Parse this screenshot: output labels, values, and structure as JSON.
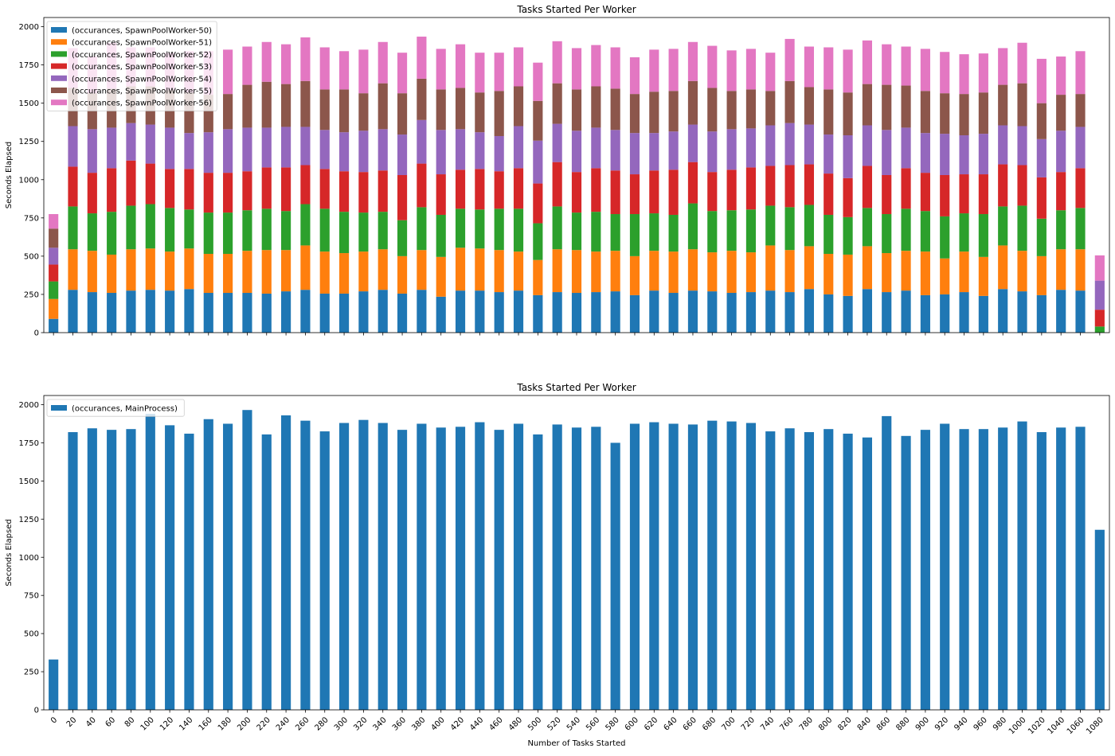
{
  "chart_data": [
    {
      "type": "bar",
      "stacked": true,
      "title": "Tasks Started Per Worker",
      "xlabel": "",
      "ylabel": "Seconds Elapsed",
      "ylim": [
        0,
        2060
      ],
      "yticks": [
        0,
        250,
        500,
        750,
        1000,
        1250,
        1500,
        1750,
        2000
      ],
      "x_ticklabels_visible": false,
      "legend_position": "top-left",
      "categories": [
        "0",
        "20",
        "40",
        "60",
        "80",
        "100",
        "120",
        "140",
        "160",
        "180",
        "200",
        "220",
        "240",
        "260",
        "280",
        "300",
        "320",
        "340",
        "360",
        "380",
        "400",
        "420",
        "440",
        "460",
        "480",
        "500",
        "520",
        "540",
        "560",
        "580",
        "600",
        "620",
        "640",
        "660",
        "680",
        "700",
        "720",
        "740",
        "760",
        "780",
        "800",
        "820",
        "840",
        "860",
        "880",
        "900",
        "920",
        "940",
        "960",
        "980",
        "1000",
        "1020",
        "1040",
        "1060",
        "1080"
      ],
      "series": [
        {
          "name": "(occurances, SpawnPoolWorker-50)",
          "color": "#1f77b4",
          "values": [
            90,
            280,
            265,
            260,
            275,
            280,
            275,
            285,
            260,
            260,
            260,
            255,
            270,
            280,
            255,
            255,
            270,
            280,
            255,
            280,
            235,
            275,
            275,
            265,
            275,
            245,
            265,
            260,
            265,
            270,
            245,
            275,
            260,
            275,
            270,
            260,
            265,
            275,
            265,
            285,
            250,
            240,
            285,
            265,
            275,
            245,
            250,
            265,
            240,
            285,
            270,
            245,
            280,
            275,
            0
          ]
        },
        {
          "name": "(occurances, SpawnPoolWorker-51)",
          "color": "#ff7f0e",
          "values": [
            130,
            265,
            270,
            250,
            270,
            270,
            255,
            265,
            255,
            255,
            275,
            285,
            270,
            290,
            275,
            265,
            260,
            265,
            245,
            260,
            260,
            280,
            275,
            275,
            255,
            230,
            280,
            280,
            265,
            265,
            255,
            260,
            270,
            270,
            255,
            275,
            260,
            295,
            275,
            280,
            265,
            270,
            280,
            255,
            260,
            285,
            235,
            265,
            255,
            285,
            265,
            255,
            265,
            270,
            0
          ]
        },
        {
          "name": "(occurances, SpawnPoolWorker-52)",
          "color": "#2ca02c",
          "values": [
            115,
            280,
            245,
            280,
            285,
            290,
            285,
            255,
            270,
            270,
            265,
            270,
            255,
            270,
            280,
            270,
            255,
            245,
            235,
            280,
            275,
            255,
            255,
            270,
            280,
            240,
            280,
            245,
            260,
            240,
            275,
            245,
            240,
            300,
            270,
            265,
            280,
            260,
            280,
            270,
            255,
            245,
            250,
            255,
            275,
            265,
            275,
            250,
            280,
            255,
            295,
            245,
            255,
            270,
            40
          ]
        },
        {
          "name": "(occurances, SpawnPoolWorker-53)",
          "color": "#d62728",
          "values": [
            110,
            260,
            265,
            285,
            295,
            265,
            255,
            265,
            260,
            260,
            255,
            270,
            285,
            255,
            260,
            265,
            265,
            270,
            295,
            285,
            265,
            255,
            265,
            245,
            265,
            260,
            290,
            265,
            285,
            285,
            260,
            280,
            295,
            270,
            255,
            265,
            275,
            260,
            275,
            265,
            270,
            255,
            275,
            255,
            265,
            250,
            270,
            255,
            260,
            275,
            265,
            270,
            250,
            260,
            110
          ]
        },
        {
          "name": "(occurances, SpawnPoolWorker-54)",
          "color": "#9467bd",
          "values": [
            110,
            265,
            285,
            265,
            245,
            255,
            270,
            235,
            265,
            285,
            285,
            260,
            265,
            250,
            255,
            255,
            270,
            270,
            265,
            285,
            290,
            265,
            240,
            230,
            275,
            280,
            250,
            270,
            265,
            265,
            270,
            245,
            250,
            245,
            265,
            265,
            255,
            265,
            275,
            260,
            255,
            280,
            265,
            295,
            265,
            260,
            270,
            255,
            265,
            255,
            255,
            250,
            270,
            270,
            190
          ]
        },
        {
          "name": "(occurances, SpawnPoolWorker-55)",
          "color": "#8c564b",
          "values": [
            125,
            250,
            235,
            255,
            240,
            250,
            245,
            265,
            245,
            230,
            280,
            300,
            280,
            300,
            265,
            280,
            245,
            300,
            270,
            270,
            265,
            270,
            260,
            295,
            260,
            260,
            265,
            270,
            270,
            270,
            255,
            270,
            265,
            285,
            285,
            250,
            255,
            225,
            275,
            245,
            295,
            280,
            270,
            295,
            275,
            275,
            265,
            270,
            270,
            265,
            280,
            235,
            235,
            215,
            0
          ]
        },
        {
          "name": "(occurances, SpawnPoolWorker-56)",
          "color": "#e377c2",
          "values": [
            95,
            260,
            240,
            300,
            255,
            255,
            245,
            270,
            285,
            290,
            250,
            260,
            260,
            285,
            275,
            250,
            285,
            270,
            265,
            275,
            265,
            285,
            260,
            250,
            255,
            250,
            275,
            270,
            270,
            270,
            240,
            275,
            275,
            255,
            275,
            265,
            265,
            250,
            275,
            265,
            275,
            280,
            285,
            265,
            255,
            275,
            270,
            260,
            255,
            240,
            265,
            290,
            250,
            280,
            165
          ]
        }
      ]
    },
    {
      "type": "bar",
      "title": "Tasks Started Per Worker",
      "xlabel": "Number of Tasks Started",
      "ylabel": "Seconds Elapsed",
      "ylim": [
        0,
        2060
      ],
      "yticks": [
        0,
        250,
        500,
        750,
        1000,
        1250,
        1500,
        1750,
        2000
      ],
      "x_ticklabels_visible": true,
      "legend_position": "top-left",
      "categories": [
        "0",
        "20",
        "40",
        "60",
        "80",
        "100",
        "120",
        "140",
        "160",
        "180",
        "200",
        "220",
        "240",
        "260",
        "280",
        "300",
        "320",
        "340",
        "360",
        "380",
        "400",
        "420",
        "440",
        "460",
        "480",
        "500",
        "520",
        "540",
        "560",
        "580",
        "600",
        "620",
        "640",
        "660",
        "680",
        "700",
        "720",
        "740",
        "760",
        "780",
        "800",
        "820",
        "840",
        "860",
        "880",
        "900",
        "920",
        "940",
        "960",
        "980",
        "1000",
        "1020",
        "1040",
        "1060",
        "1080"
      ],
      "series": [
        {
          "name": "(occurances, MainProcess)",
          "color": "#1f77b4",
          "values": [
            330,
            1820,
            1845,
            1835,
            1840,
            1940,
            1865,
            1810,
            1905,
            1875,
            1965,
            1805,
            1930,
            1895,
            1825,
            1880,
            1900,
            1880,
            1835,
            1875,
            1850,
            1855,
            1885,
            1835,
            1875,
            1805,
            1870,
            1850,
            1855,
            1750,
            1875,
            1885,
            1875,
            1870,
            1895,
            1890,
            1880,
            1825,
            1845,
            1820,
            1840,
            1810,
            1785,
            1925,
            1795,
            1835,
            1875,
            1840,
            1840,
            1850,
            1890,
            1820,
            1850,
            1855,
            1180
          ]
        }
      ]
    }
  ]
}
